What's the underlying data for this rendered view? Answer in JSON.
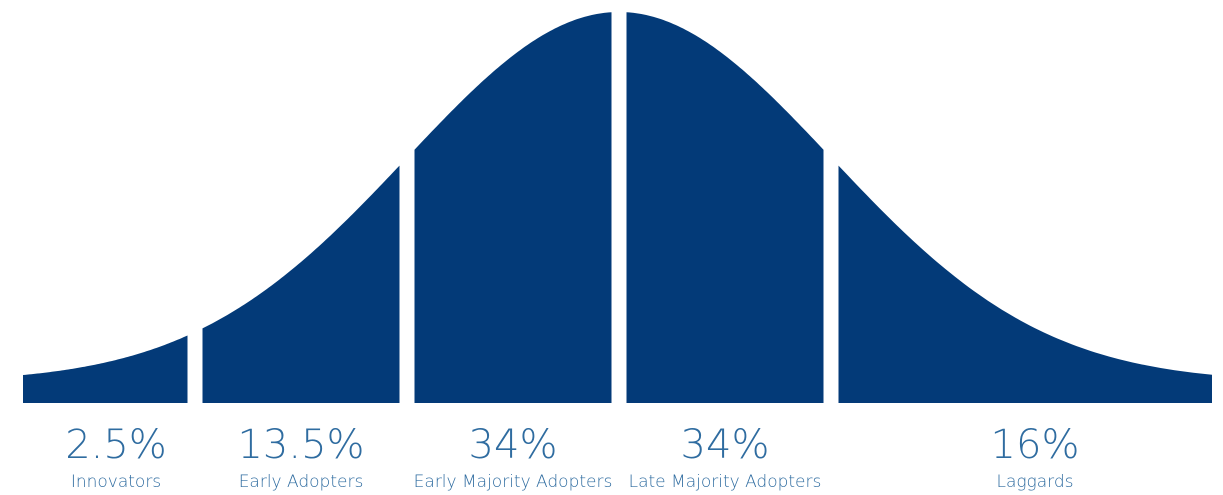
{
  "chart_data": {
    "type": "area",
    "distribution": "normal",
    "segments": [
      {
        "label": "Innovators",
        "value_label": "2.5%",
        "value": 2.5,
        "x_range_sd": [
          -3,
          -2
        ]
      },
      {
        "label": "Early Adopters",
        "value_label": "13.5%",
        "value": 13.5,
        "x_range_sd": [
          -2,
          -1
        ]
      },
      {
        "label": "Early Majority Adopters",
        "value_label": "34%",
        "value": 34,
        "x_range_sd": [
          -1,
          0
        ]
      },
      {
        "label": "Late Majority Adopters",
        "value_label": "34%",
        "value": 34,
        "x_range_sd": [
          0,
          1
        ]
      },
      {
        "label": "Laggards",
        "value_label": "16%",
        "value": 16,
        "x_range_sd": [
          1,
          3
        ]
      }
    ],
    "title": "",
    "xlabel": "",
    "ylabel": "",
    "grid": false,
    "legend": "none"
  },
  "colors": {
    "fill": "#033a78",
    "text": "#2f6ca0",
    "background": "#ffffff"
  }
}
